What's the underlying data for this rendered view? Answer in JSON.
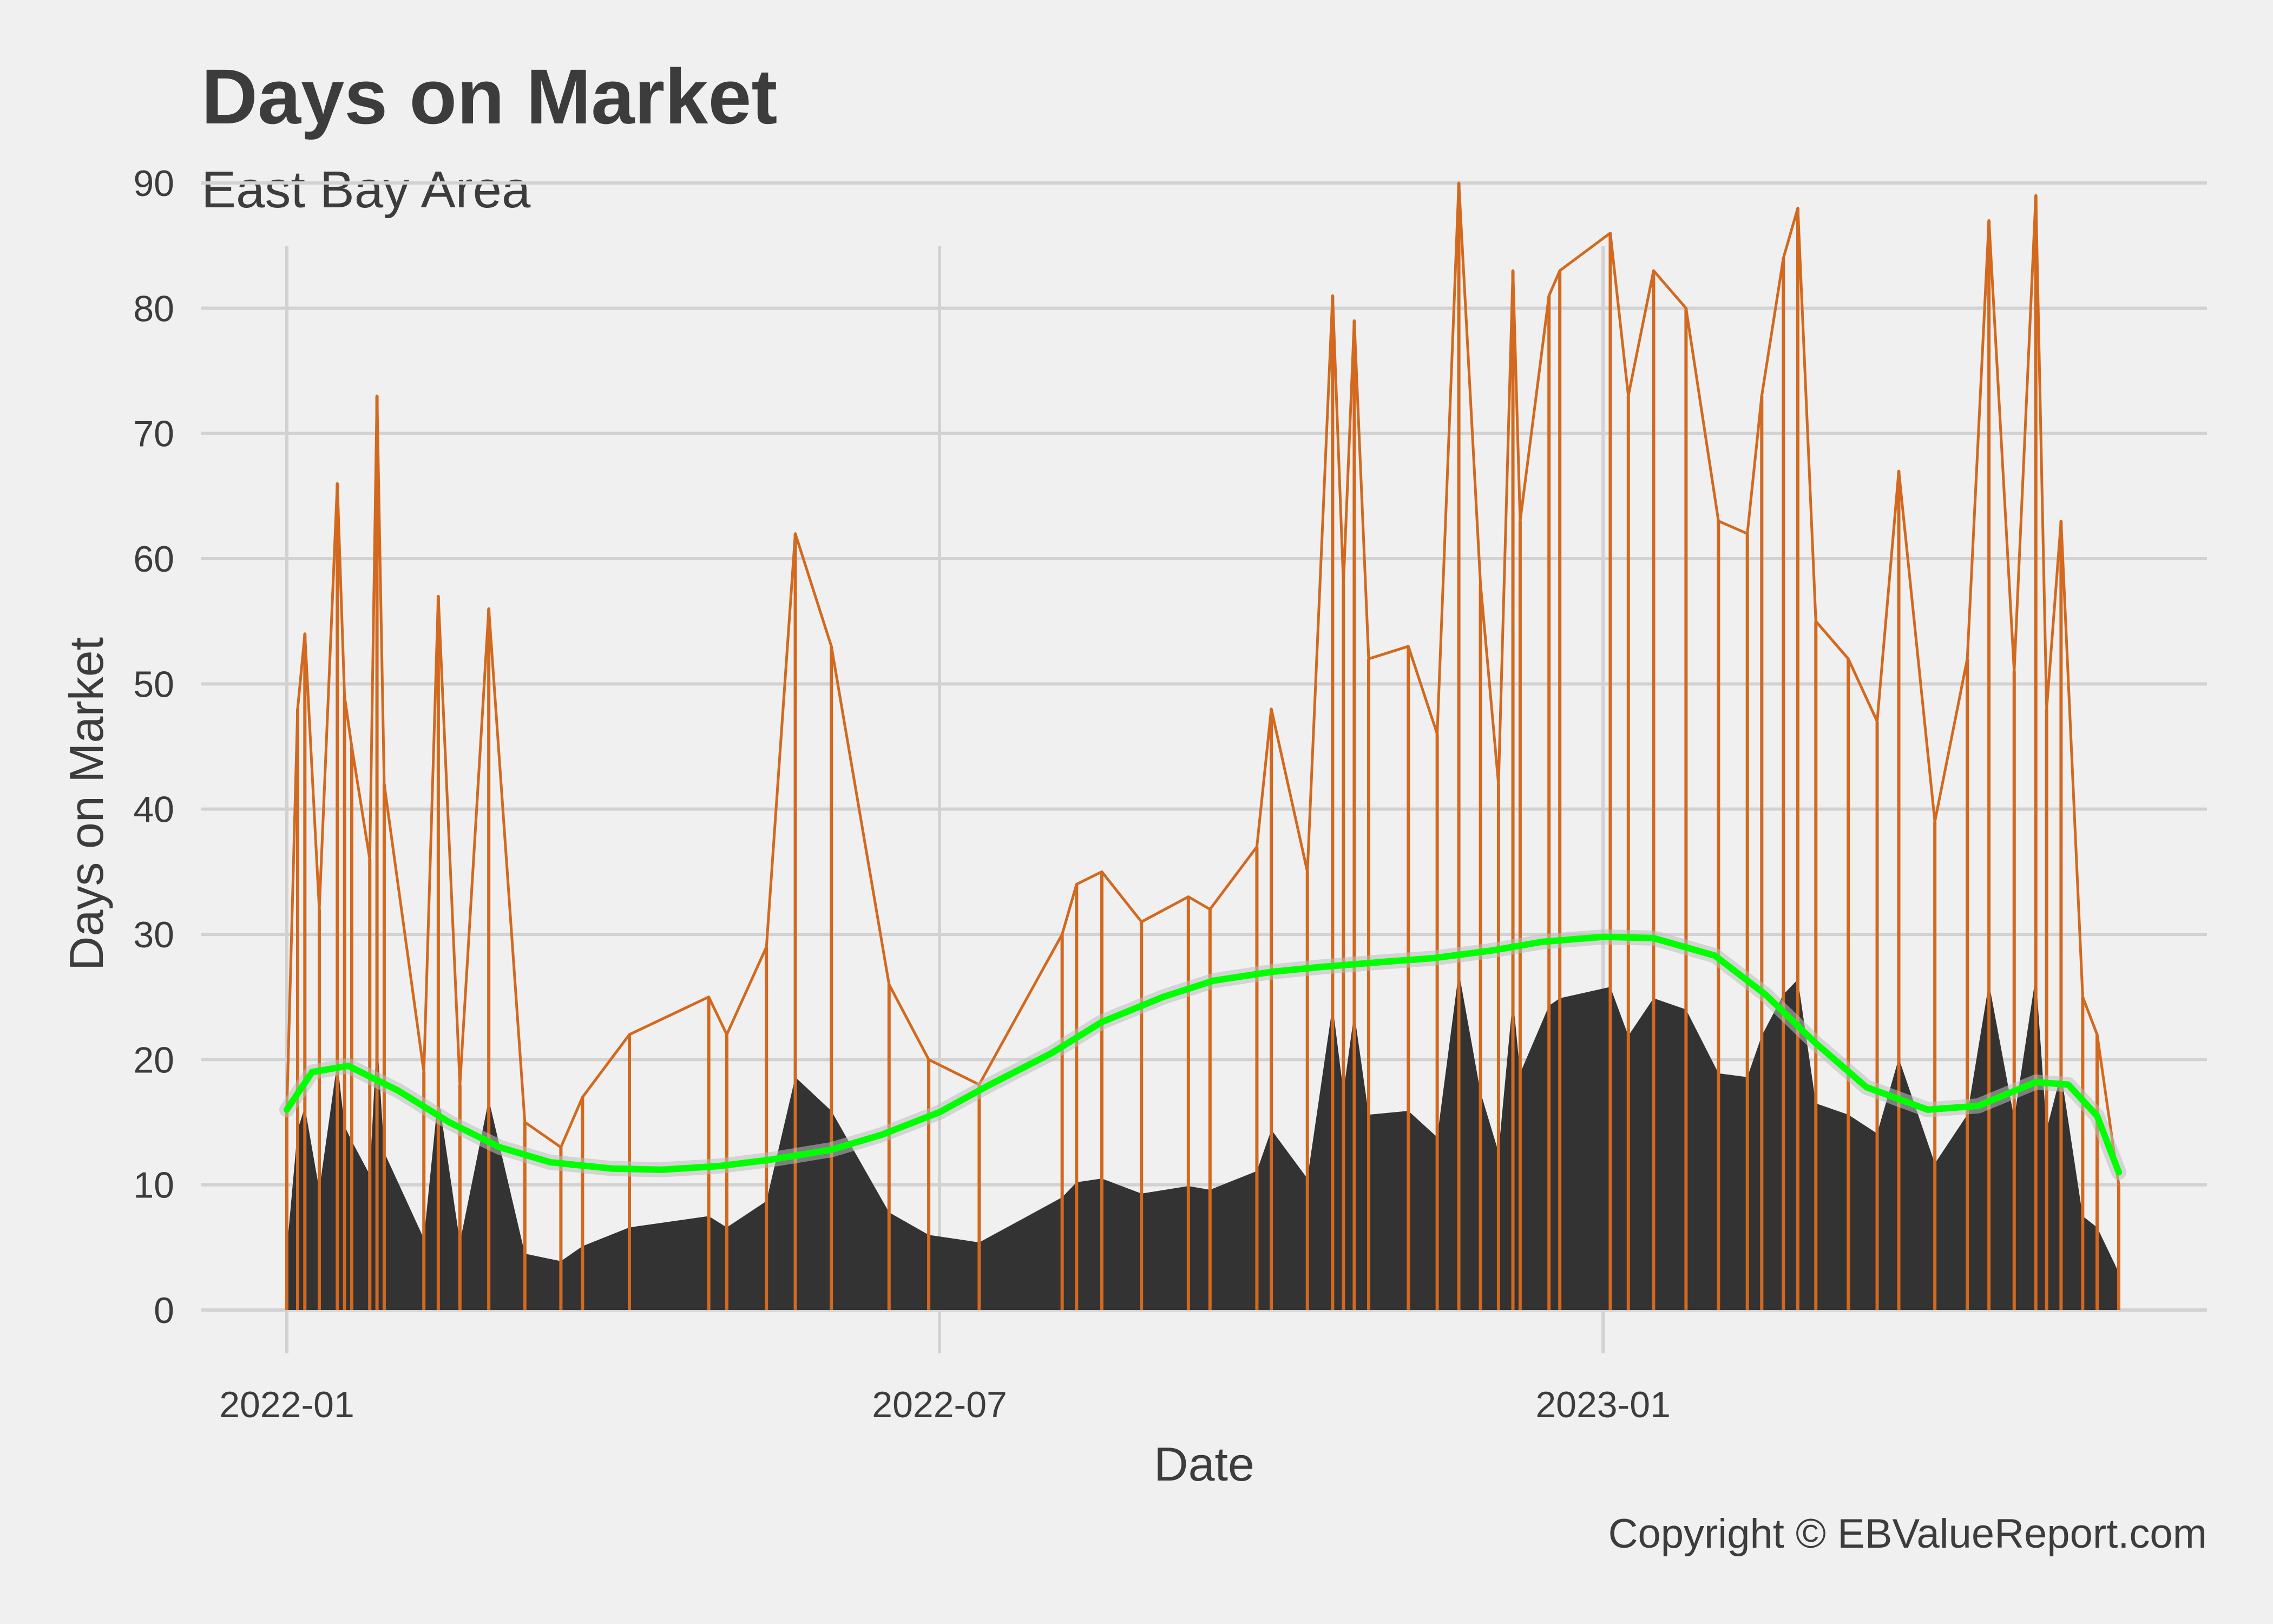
{
  "chart_data": {
    "type": "line",
    "title": "Days on Market",
    "subtitle": "East Bay Area",
    "xlabel": "Date",
    "ylabel": "Days on Market",
    "caption": "Copyright  © EBValueReport.com",
    "x_range": [
      "2022-01-01",
      "2023-05-24"
    ],
    "ylim": [
      0,
      95
    ],
    "x_ticks": [
      {
        "date": "2022-01-01",
        "label": "2022-01"
      },
      {
        "date": "2022-07-01",
        "label": "2022-07"
      },
      {
        "date": "2023-01-01",
        "label": "2023-01"
      }
    ],
    "y_ticks": [
      0,
      10,
      20,
      30,
      40,
      50,
      60,
      70,
      80,
      90
    ],
    "grid": true,
    "legend": "none",
    "colors": {
      "background": "#f0f0f0",
      "grid": "#d2d2d2",
      "series": "#d2691e",
      "area": "#333333",
      "smooth": "#00ff00",
      "band": "#bdbdbd",
      "text": "#3c3c3c"
    },
    "series": [
      {
        "values": [
          {
            "x": "2022-01-01",
            "y": 16
          },
          {
            "x": "2022-01-04",
            "y": 48
          },
          {
            "x": "2022-01-06",
            "y": 54
          },
          {
            "x": "2022-01-10",
            "y": 32
          },
          {
            "x": "2022-01-15",
            "y": 66
          },
          {
            "x": "2022-01-17",
            "y": 49
          },
          {
            "x": "2022-01-19",
            "y": 45
          },
          {
            "x": "2022-01-24",
            "y": 36
          },
          {
            "x": "2022-01-26",
            "y": 73
          },
          {
            "x": "2022-01-28",
            "y": 42
          },
          {
            "x": "2022-02-08",
            "y": 19
          },
          {
            "x": "2022-02-12",
            "y": 57
          },
          {
            "x": "2022-02-18",
            "y": 18
          },
          {
            "x": "2022-02-26",
            "y": 56
          },
          {
            "x": "2022-03-08",
            "y": 15
          },
          {
            "x": "2022-03-18",
            "y": 13
          },
          {
            "x": "2022-03-24",
            "y": 17
          },
          {
            "x": "2022-04-06",
            "y": 22
          },
          {
            "x": "2022-04-28",
            "y": 25
          },
          {
            "x": "2022-05-03",
            "y": 22
          },
          {
            "x": "2022-05-14",
            "y": 29
          },
          {
            "x": "2022-05-22",
            "y": 62
          },
          {
            "x": "2022-06-01",
            "y": 53
          },
          {
            "x": "2022-06-17",
            "y": 26
          },
          {
            "x": "2022-06-28",
            "y": 20
          },
          {
            "x": "2022-07-12",
            "y": 18
          },
          {
            "x": "2022-08-04",
            "y": 30
          },
          {
            "x": "2022-08-08",
            "y": 34
          },
          {
            "x": "2022-08-15",
            "y": 35
          },
          {
            "x": "2022-08-26",
            "y": 31
          },
          {
            "x": "2022-09-08",
            "y": 33
          },
          {
            "x": "2022-09-14",
            "y": 32
          },
          {
            "x": "2022-09-27",
            "y": 37
          },
          {
            "x": "2022-10-01",
            "y": 48
          },
          {
            "x": "2022-10-11",
            "y": 35
          },
          {
            "x": "2022-10-18",
            "y": 81
          },
          {
            "x": "2022-10-21",
            "y": 58
          },
          {
            "x": "2022-10-24",
            "y": 79
          },
          {
            "x": "2022-10-28",
            "y": 52
          },
          {
            "x": "2022-11-08",
            "y": 53
          },
          {
            "x": "2022-11-16",
            "y": 46
          },
          {
            "x": "2022-11-22",
            "y": 90
          },
          {
            "x": "2022-11-28",
            "y": 58
          },
          {
            "x": "2022-12-03",
            "y": 42
          },
          {
            "x": "2022-12-07",
            "y": 83
          },
          {
            "x": "2022-12-09",
            "y": 63
          },
          {
            "x": "2022-12-17",
            "y": 81
          },
          {
            "x": "2022-12-20",
            "y": 83
          },
          {
            "x": "2023-01-03",
            "y": 86
          },
          {
            "x": "2023-01-08",
            "y": 73
          },
          {
            "x": "2023-01-15",
            "y": 83
          },
          {
            "x": "2023-01-24",
            "y": 80
          },
          {
            "x": "2023-02-02",
            "y": 63
          },
          {
            "x": "2023-02-10",
            "y": 62
          },
          {
            "x": "2023-02-14",
            "y": 73
          },
          {
            "x": "2023-02-20",
            "y": 84
          },
          {
            "x": "2023-02-24",
            "y": 88
          },
          {
            "x": "2023-03-01",
            "y": 55
          },
          {
            "x": "2023-03-10",
            "y": 52
          },
          {
            "x": "2023-03-18",
            "y": 47
          },
          {
            "x": "2023-03-24",
            "y": 67
          },
          {
            "x": "2023-04-03",
            "y": 39
          },
          {
            "x": "2023-04-12",
            "y": 52
          },
          {
            "x": "2023-04-18",
            "y": 87
          },
          {
            "x": "2023-04-25",
            "y": 51
          },
          {
            "x": "2023-05-01",
            "y": 89
          },
          {
            "x": "2023-05-04",
            "y": 48
          },
          {
            "x": "2023-05-08",
            "y": 63
          },
          {
            "x": "2023-05-14",
            "y": 25
          },
          {
            "x": "2023-05-18",
            "y": 22
          },
          {
            "x": "2023-05-24",
            "y": 10
          }
        ]
      },
      {
        "type": "smooth",
        "values": [
          {
            "x": "2022-01-01",
            "y": 16
          },
          {
            "x": "2022-01-08",
            "y": 19
          },
          {
            "x": "2022-01-18",
            "y": 19.5
          },
          {
            "x": "2022-02-01",
            "y": 17.5
          },
          {
            "x": "2022-02-15",
            "y": 15
          },
          {
            "x": "2022-03-01",
            "y": 13
          },
          {
            "x": "2022-03-15",
            "y": 11.8
          },
          {
            "x": "2022-04-01",
            "y": 11.3
          },
          {
            "x": "2022-04-15",
            "y": 11.2
          },
          {
            "x": "2022-05-01",
            "y": 11.5
          },
          {
            "x": "2022-05-15",
            "y": 12
          },
          {
            "x": "2022-06-01",
            "y": 12.8
          },
          {
            "x": "2022-06-15",
            "y": 14
          },
          {
            "x": "2022-07-01",
            "y": 15.8
          },
          {
            "x": "2022-07-15",
            "y": 18
          },
          {
            "x": "2022-08-01",
            "y": 20.5
          },
          {
            "x": "2022-08-15",
            "y": 23
          },
          {
            "x": "2022-09-01",
            "y": 25
          },
          {
            "x": "2022-09-15",
            "y": 26.3
          },
          {
            "x": "2022-10-01",
            "y": 27
          },
          {
            "x": "2022-10-15",
            "y": 27.4
          },
          {
            "x": "2022-11-01",
            "y": 27.8
          },
          {
            "x": "2022-11-15",
            "y": 28.1
          },
          {
            "x": "2022-12-01",
            "y": 28.7
          },
          {
            "x": "2022-12-15",
            "y": 29.4
          },
          {
            "x": "2023-01-01",
            "y": 29.8
          },
          {
            "x": "2023-01-15",
            "y": 29.7
          },
          {
            "x": "2023-02-01",
            "y": 28.3
          },
          {
            "x": "2023-02-15",
            "y": 25.2
          },
          {
            "x": "2023-03-01",
            "y": 21.3
          },
          {
            "x": "2023-03-15",
            "y": 17.8
          },
          {
            "x": "2023-04-01",
            "y": 16
          },
          {
            "x": "2023-04-15",
            "y": 16.3
          },
          {
            "x": "2023-05-01",
            "y": 18.2
          },
          {
            "x": "2023-05-10",
            "y": 18
          },
          {
            "x": "2023-05-18",
            "y": 15.5
          },
          {
            "x": "2023-05-24",
            "y": 11
          }
        ]
      }
    ]
  }
}
